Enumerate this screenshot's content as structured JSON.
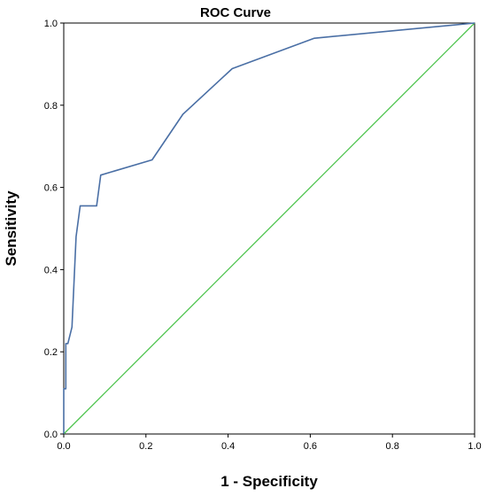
{
  "chart_data": {
    "type": "line",
    "title": "ROC Curve",
    "xlabel": "1 - Specificity",
    "ylabel": "Sensitivity",
    "xlim": [
      0,
      1
    ],
    "ylim": [
      0,
      1
    ],
    "x_ticks": [
      "0.0",
      "0.2",
      "0.4",
      "0.6",
      "0.8",
      "1.0"
    ],
    "y_ticks": [
      "0.0",
      "0.2",
      "0.4",
      "0.6",
      "0.8",
      "1.0"
    ],
    "grid": false,
    "legend": "none",
    "series": [
      {
        "color": "#4a6fa5",
        "x": [
          0.0,
          0.0,
          0.005,
          0.005,
          0.01,
          0.02,
          0.03,
          0.04,
          0.055,
          0.08,
          0.09,
          0.215,
          0.29,
          0.41,
          0.61,
          1.0
        ],
        "y": [
          0.0,
          0.11,
          0.11,
          0.22,
          0.22,
          0.26,
          0.48,
          0.555,
          0.555,
          0.555,
          0.63,
          0.667,
          0.778,
          0.889,
          0.963,
          1.0
        ]
      },
      {
        "color": "#4cc44c",
        "x": [
          0.0,
          1.0
        ],
        "y": [
          0.0,
          1.0
        ]
      }
    ]
  }
}
